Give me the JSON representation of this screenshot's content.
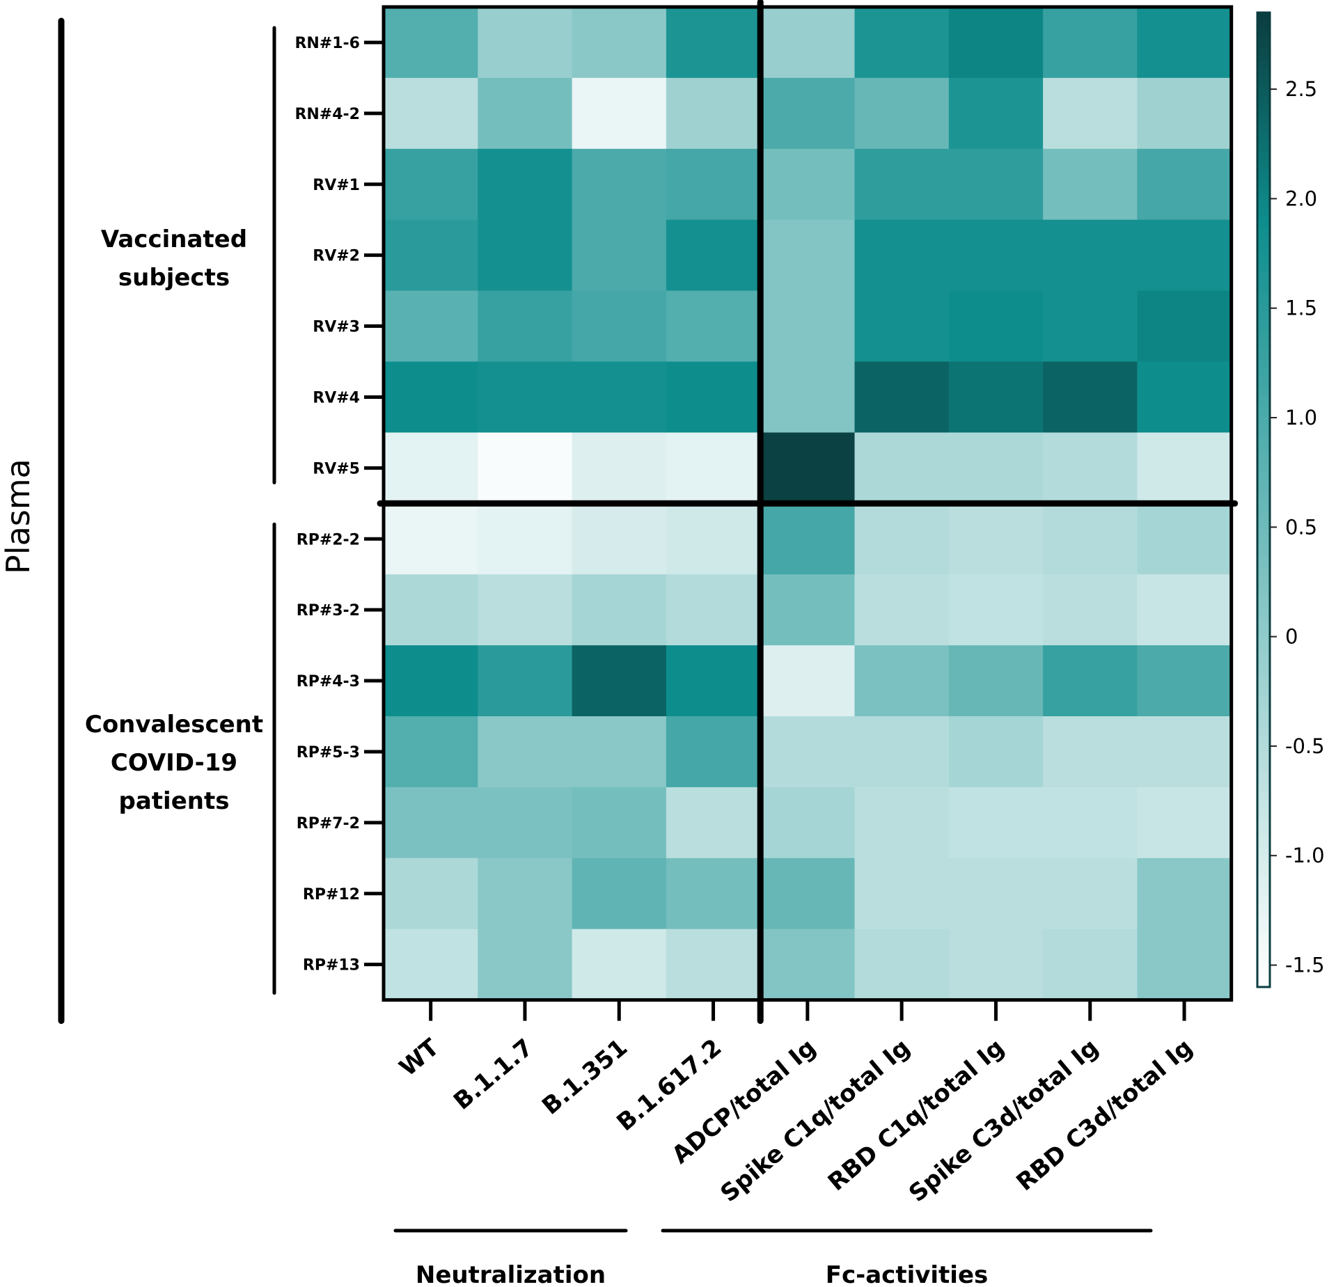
{
  "chart_data": {
    "type": "heatmap",
    "block_label": "Plasma",
    "row_groups": [
      {
        "label_lines": [
          "Vaccinated",
          "subjects"
        ],
        "rows": [
          "RN#1-6",
          "RN#4-2",
          "RV#1",
          "RV#2",
          "RV#3",
          "RV#4",
          "RV#5"
        ]
      },
      {
        "label_lines": [
          "Convalescent",
          "COVID-19",
          "patients"
        ],
        "rows": [
          "RP#2-2",
          "RP#3-2",
          "RP#4-3",
          "RP#5-3",
          "RP#7-2",
          "RP#12",
          "RP#13"
        ]
      }
    ],
    "columns": [
      "WT",
      "B.1.1.7",
      "B.1.351",
      "B.1.617.2",
      "ADCP/total Ig",
      "Spike C1q/total Ig",
      "RBD C1q/total Ig",
      "Spike C3d/total Ig",
      "RBD C3d/total Ig"
    ],
    "column_groups": [
      {
        "label": "Neutralization",
        "columns": [
          "WT",
          "B.1.1.7",
          "B.1.351",
          "B.1.617.2"
        ]
      },
      {
        "label": "Fc-activities",
        "columns": [
          "ADCP/total Ig",
          "Spike C1q/total Ig",
          "RBD C1q/total Ig",
          "Spike C3d/total Ig",
          "RBD C3d/total Ig"
        ]
      }
    ],
    "values": [
      [
        0.9,
        -0.1,
        0.1,
        1.7,
        -0.1,
        1.7,
        2.0,
        1.3,
        1.8
      ],
      [
        -0.6,
        0.4,
        -1.3,
        -0.2,
        1.0,
        0.6,
        1.7,
        -0.6,
        -0.2
      ],
      [
        1.3,
        1.8,
        1.0,
        1.1,
        0.4,
        1.4,
        1.4,
        0.4,
        1.1
      ],
      [
        1.5,
        1.8,
        1.0,
        1.8,
        0.2,
        1.8,
        1.8,
        1.8,
        1.8
      ],
      [
        0.8,
        1.3,
        1.1,
        0.9,
        0.2,
        1.8,
        1.9,
        1.8,
        2.0
      ],
      [
        1.9,
        1.8,
        1.8,
        1.9,
        0.2,
        2.4,
        2.2,
        2.4,
        1.9
      ],
      [
        -1.2,
        -1.5,
        -1.1,
        -1.2,
        2.8,
        -0.4,
        -0.4,
        -0.5,
        -0.9
      ],
      [
        -1.3,
        -1.2,
        -1.0,
        -0.9,
        1.1,
        -0.5,
        -0.6,
        -0.5,
        -0.3
      ],
      [
        -0.4,
        -0.6,
        -0.3,
        -0.5,
        0.4,
        -0.6,
        -0.7,
        -0.6,
        -0.8
      ],
      [
        1.9,
        1.5,
        2.4,
        1.9,
        -1.1,
        0.3,
        0.6,
        1.3,
        1.0
      ],
      [
        0.9,
        0.1,
        0.1,
        1.1,
        -0.5,
        -0.5,
        -0.3,
        -0.6,
        -0.6
      ],
      [
        0.3,
        0.3,
        0.4,
        -0.6,
        -0.3,
        -0.6,
        -0.7,
        -0.7,
        -0.8
      ],
      [
        -0.4,
        0.1,
        0.7,
        0.4,
        0.6,
        -0.6,
        -0.6,
        -0.6,
        0.1
      ],
      [
        -0.7,
        0.1,
        -0.9,
        -0.6,
        0.2,
        -0.5,
        -0.6,
        -0.5,
        0.1
      ]
    ],
    "colorbar": {
      "min": -1.6,
      "max": 2.85,
      "ticks": [
        2.5,
        2.0,
        1.5,
        1.0,
        0.5,
        0,
        -0.5,
        -1.0,
        -1.5
      ],
      "tick_labels": [
        "2.5",
        "2.0",
        "1.5",
        "1.0",
        "0.5",
        "0",
        "-0.5",
        "-1.0",
        "-1.5"
      ],
      "color_low": "#ffffff",
      "color_mid": "#0e8d8d",
      "color_high": "#0b3d3f"
    },
    "accent_line_color": "#000000"
  }
}
